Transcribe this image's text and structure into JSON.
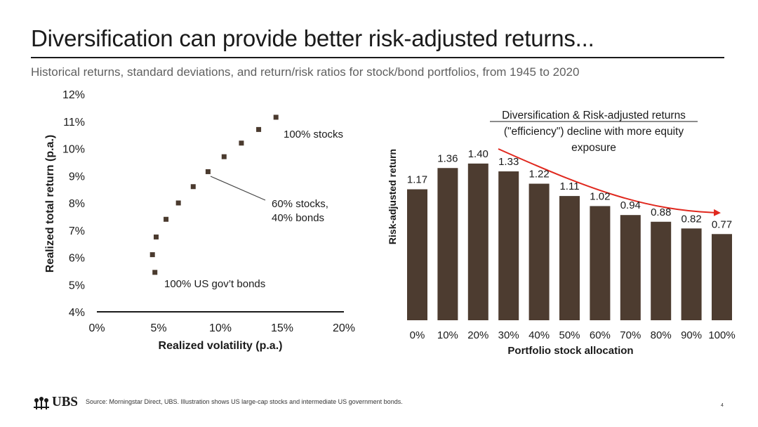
{
  "slide": {
    "title": "Diversification can provide better risk-adjusted returns...",
    "subtitle": "Historical returns, standard deviations, and return/risk ratios for stock/bond portfolios, from 1945 to 2020",
    "source": "Source: Morningstar Direct, UBS. Illustration shows US large-cap stocks and intermediate US government bonds.",
    "page_number": "4",
    "logo_text": "UBS"
  },
  "colors": {
    "marker": "#4a3a2e",
    "bar": "#4d3c30",
    "arrow": "#e0281e",
    "axis": "#1a1a1a"
  },
  "chart_data": [
    {
      "type": "scatter",
      "xlabel": "Realized volatility (p.a.)",
      "ylabel": "Realized total return (p.a.)",
      "xlim": [
        0,
        20
      ],
      "ylim": [
        4,
        12
      ],
      "x_ticks": [
        "0%",
        "5%",
        "10%",
        "15%",
        "20%"
      ],
      "y_ticks": [
        "4%",
        "5%",
        "6%",
        "7%",
        "8%",
        "9%",
        "10%",
        "11%",
        "12%"
      ],
      "points": [
        {
          "x": 4.7,
          "y": 5.45
        },
        {
          "x": 4.5,
          "y": 6.1
        },
        {
          "x": 4.8,
          "y": 6.75
        },
        {
          "x": 5.6,
          "y": 7.4
        },
        {
          "x": 6.6,
          "y": 8.0
        },
        {
          "x": 7.8,
          "y": 8.6
        },
        {
          "x": 9.0,
          "y": 9.15
        },
        {
          "x": 10.3,
          "y": 9.7
        },
        {
          "x": 11.7,
          "y": 10.2
        },
        {
          "x": 13.1,
          "y": 10.7
        },
        {
          "x": 14.5,
          "y": 11.15
        }
      ],
      "annotations": {
        "stocks": "100% stocks",
        "mix_line1": "60% stocks,",
        "mix_line2": "40% bonds",
        "bonds": "100% US gov’t bonds"
      }
    },
    {
      "type": "bar",
      "xlabel": "Portfolio stock allocation",
      "ylabel": "Risk-adjusted return",
      "ylim": [
        0,
        1.6
      ],
      "categories": [
        "0%",
        "10%",
        "20%",
        "30%",
        "40%",
        "50%",
        "60%",
        "70%",
        "80%",
        "90%",
        "100%"
      ],
      "values": [
        1.17,
        1.36,
        1.4,
        1.33,
        1.22,
        1.11,
        1.02,
        0.94,
        0.88,
        0.82,
        0.77
      ],
      "value_labels": [
        "1.17",
        "1.36",
        "1.40",
        "1.33",
        "1.22",
        "1.11",
        "1.02",
        "0.94",
        "0.88",
        "0.82",
        "0.77"
      ],
      "annotation": {
        "heading": "Diversification & Risk-adjusted returns",
        "line2": "(\"efficiency\") decline with more equity",
        "line3": "exposure"
      }
    }
  ]
}
